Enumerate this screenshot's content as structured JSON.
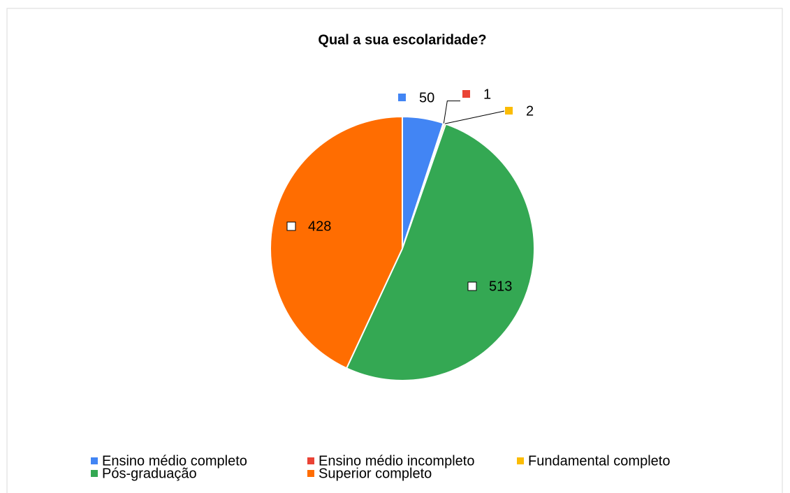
{
  "chart_data": {
    "type": "pie",
    "title": "Qual a sua escolaridade?",
    "categories": [
      "Ensino médio completo",
      "Ensino médio incompleto",
      "Fundamental completo",
      "Pós-graduação",
      "Superior completo"
    ],
    "values": [
      50,
      1,
      2,
      513,
      428
    ],
    "colors": [
      "#4285f4",
      "#ea4335",
      "#fbbc04",
      "#34a853",
      "#ff6d01"
    ],
    "legend": "bottom"
  }
}
